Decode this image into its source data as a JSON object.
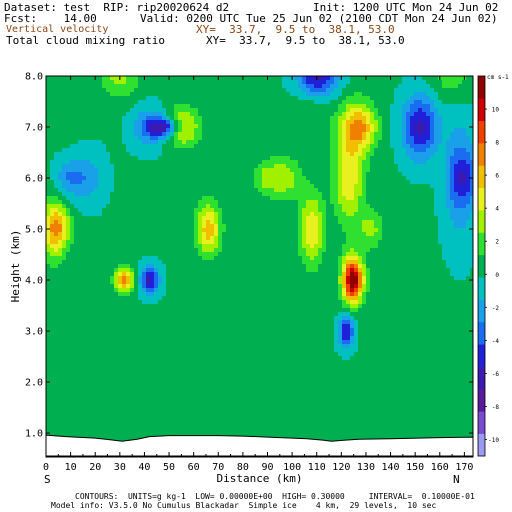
{
  "header": {
    "dataset_line": "Dataset: test  RIP: rip20020624 d2",
    "init_line": "Init: 1200 UTC Mon 24 Jun 02",
    "fcst_line": "Fcst:    14.00",
    "valid_line": "Valid: 0200 UTC Tue 25 Jun 02 (2100 CDT Mon 24 Jun 02)",
    "field1_name": "Vertical velocity",
    "field1_xy": "XY=  33.7,  9.5 to  38.1, 53.0",
    "field2_name": "Total cloud mixing ratio",
    "field2_xy": "XY=  33.7,  9.5 to  38.1, 53.0"
  },
  "footer": {
    "contours_line": "CONTOURS:  UNITS=g kg-1  LOW= 0.00000E+00  HIGH= 0.30000     INTERVAL=  0.10000E-01",
    "model_line": "Model info: V3.5.0 No Cumulus Blackadar  Simple ice    4 km,  29 levels,  10 sec"
  },
  "colors": {
    "palette": [
      "#9a9af0",
      "#7a4ad0",
      "#5a1a9a",
      "#3a1ab0",
      "#2020d8",
      "#1a6cf0",
      "#1aa0e8",
      "#00c0c0",
      "#00b050",
      "#30e030",
      "#a0f000",
      "#e8f020",
      "#f0c000",
      "#f08000",
      "#f04000",
      "#d00000",
      "#900000"
    ]
  },
  "chart_data": {
    "type": "heatmap",
    "title": "Vertical velocity",
    "xlabel": "Distance (km)",
    "ylabel": "Height (km)",
    "x_ticks": [
      "0",
      "10",
      "20",
      "30",
      "40",
      "50",
      "60",
      "70",
      "80",
      "90",
      "100",
      "110",
      "120",
      "130",
      "140",
      "150",
      "160",
      "170"
    ],
    "y_ticks": [
      "1.0",
      "2.0",
      "3.0",
      "4.0",
      "5.0",
      "6.0",
      "7.0",
      "8.0"
    ],
    "xlim": [
      0,
      173.5
    ],
    "ylim": [
      0.55,
      8.0
    ],
    "left_end_label": "S",
    "right_end_label": "N",
    "colorbar": {
      "unit_label": "cm s-1",
      "tick_labels": [
        "10",
        "8",
        "6",
        "4",
        "2",
        "0",
        "-2",
        "-4",
        "-6",
        "-8",
        "-10"
      ],
      "tick_values": [
        10,
        8,
        6,
        4,
        2,
        0,
        -2,
        -4,
        -6,
        -8,
        -10
      ],
      "range": [
        -11,
        12
      ]
    },
    "blobs": [
      [
        2,
        1.7,
        10,
        0.55,
        -6
      ],
      [
        10,
        1.2,
        6,
        0.35,
        -3
      ],
      [
        3,
        3.8,
        5,
        0.6,
        5
      ],
      [
        6,
        3.5,
        5,
        0.4,
        3
      ],
      [
        32,
        1.2,
        4,
        0.25,
        7
      ],
      [
        30,
        1.35,
        8,
        0.45,
        3
      ],
      [
        42,
        1.6,
        4,
        0.25,
        -6
      ],
      [
        42,
        1.5,
        7,
        0.4,
        -3
      ],
      [
        55,
        3.6,
        7,
        0.35,
        6
      ],
      [
        50,
        3.5,
        13,
        0.55,
        3
      ],
      [
        66,
        6.6,
        5,
        0.5,
        6
      ],
      [
        64,
        6.4,
        9,
        0.8,
        4
      ],
      [
        110,
        1.65,
        8,
        0.45,
        -9
      ],
      [
        105,
        1.75,
        22,
        0.75,
        -5
      ],
      [
        80,
        1.7,
        40,
        0.7,
        -4
      ],
      [
        124,
        1.3,
        4,
        0.5,
        8
      ],
      [
        123,
        1.55,
        6,
        0.85,
        5
      ],
      [
        108,
        6.5,
        5,
        0.7,
        5
      ],
      [
        109,
        6.4,
        8,
        0.95,
        3
      ],
      [
        126,
        6.4,
        4,
        0.35,
        5
      ],
      [
        126,
        6.2,
        7,
        0.6,
        3
      ],
      [
        49,
        5.6,
        7,
        0.2,
        -7
      ],
      [
        55,
        5.3,
        24,
        1.25,
        -5
      ],
      [
        80,
        4.4,
        28,
        0.9,
        -3
      ],
      [
        120,
        5.0,
        14,
        1.1,
        -4
      ],
      [
        122,
        4.2,
        3,
        0.3,
        -6
      ],
      [
        152,
        5.5,
        7,
        0.6,
        -6
      ],
      [
        150,
        5.2,
        14,
        1.3,
        -4
      ],
      [
        152,
        3.7,
        9,
        0.45,
        4
      ],
      [
        165,
        3.5,
        12,
        0.6,
        3
      ],
      [
        144,
        4.0,
        18,
        1.3,
        1.5
      ],
      [
        155,
        1.9,
        12,
        0.5,
        -3
      ],
      [
        170,
        1.5,
        6,
        0.5,
        -3
      ],
      [
        140,
        1.6,
        12,
        0.6,
        -2
      ],
      [
        128,
        2.4,
        7,
        0.4,
        4
      ],
      [
        132,
        1.9,
        5,
        0.4,
        3
      ],
      [
        165,
        7.5,
        8,
        0.5,
        2
      ],
      [
        30,
        7.7,
        20,
        0.5,
        3
      ],
      [
        95,
        7.6,
        12,
        0.5,
        2
      ],
      [
        6,
        6.0,
        12,
        2.0,
        -3
      ],
      [
        18,
        2.9,
        6,
        0.5,
        -2
      ],
      [
        40,
        7.6,
        10,
        0.35,
        -3
      ],
      [
        168,
        6.0,
        6,
        1.2,
        -3
      ],
      [
        28,
        5.4,
        10,
        0.8,
        -2
      ],
      [
        90,
        2.6,
        6,
        0.35,
        3
      ],
      [
        98,
        2.8,
        6,
        0.4,
        3
      ]
    ],
    "terrain": [
      [
        0,
        0.96
      ],
      [
        8,
        0.93
      ],
      [
        20,
        0.9
      ],
      [
        26,
        0.87
      ],
      [
        31,
        0.84
      ],
      [
        37,
        0.88
      ],
      [
        42,
        0.93
      ],
      [
        50,
        0.95
      ],
      [
        60,
        0.95
      ],
      [
        70,
        0.95
      ],
      [
        80,
        0.94
      ],
      [
        90,
        0.92
      ],
      [
        100,
        0.9
      ],
      [
        106,
        0.89
      ],
      [
        113,
        0.86
      ],
      [
        116,
        0.84
      ],
      [
        121,
        0.86
      ],
      [
        127,
        0.88
      ],
      [
        140,
        0.89
      ],
      [
        160,
        0.91
      ],
      [
        173.5,
        0.92
      ]
    ]
  }
}
